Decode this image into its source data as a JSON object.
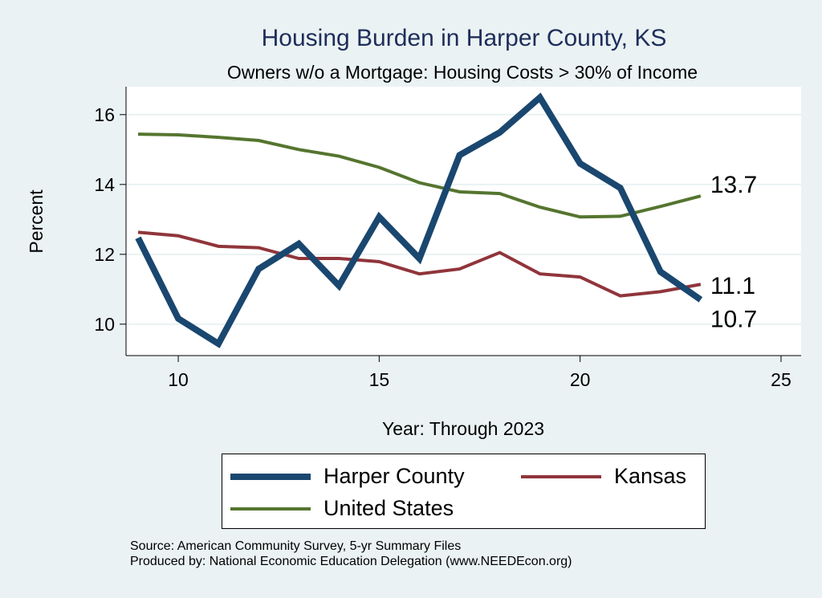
{
  "chart_data": {
    "type": "line",
    "title": "Housing Burden in Harper County, KS",
    "subtitle": "Owners w/o a Mortgage: Housing Costs > 30% of Income",
    "xlabel": "Year: Through 2023",
    "ylabel": "Percent",
    "xlim": [
      8.7,
      25.5
    ],
    "ylim": [
      9.1,
      16.8
    ],
    "xticks": [
      10,
      15,
      20,
      25
    ],
    "yticks": [
      10,
      12,
      14,
      16
    ],
    "grid": true,
    "x": [
      9,
      10,
      11,
      12,
      13,
      14,
      15,
      16,
      17,
      18,
      19,
      20,
      21,
      22,
      23
    ],
    "series": [
      {
        "name": "Harper County",
        "color": "#1a476f",
        "width": 8,
        "values": [
          12.47,
          10.16,
          9.44,
          11.58,
          12.3,
          11.1,
          13.07,
          11.88,
          14.84,
          15.49,
          16.49,
          14.6,
          13.9,
          11.5,
          10.7
        ],
        "end_label": "10.7"
      },
      {
        "name": "Kansas",
        "color": "#90353b",
        "width": 4,
        "values": [
          12.63,
          12.53,
          12.23,
          12.19,
          11.88,
          11.88,
          11.79,
          11.44,
          11.58,
          12.05,
          11.44,
          11.35,
          10.81,
          10.93,
          11.14
        ],
        "end_label": "11.1"
      },
      {
        "name": "United States",
        "color": "#55752f",
        "width": 4,
        "values": [
          15.44,
          15.42,
          15.35,
          15.26,
          15.0,
          14.81,
          14.49,
          14.05,
          13.79,
          13.74,
          13.35,
          13.07,
          13.09,
          13.37,
          13.67
        ],
        "end_label": "13.7"
      }
    ],
    "legend_position": "bottom"
  },
  "notes": {
    "source": "Source: American Community Survey, 5-yr Summary Files",
    "produced": "Produced by: National Economic Education Delegation (www.NEEDEcon.org)"
  }
}
